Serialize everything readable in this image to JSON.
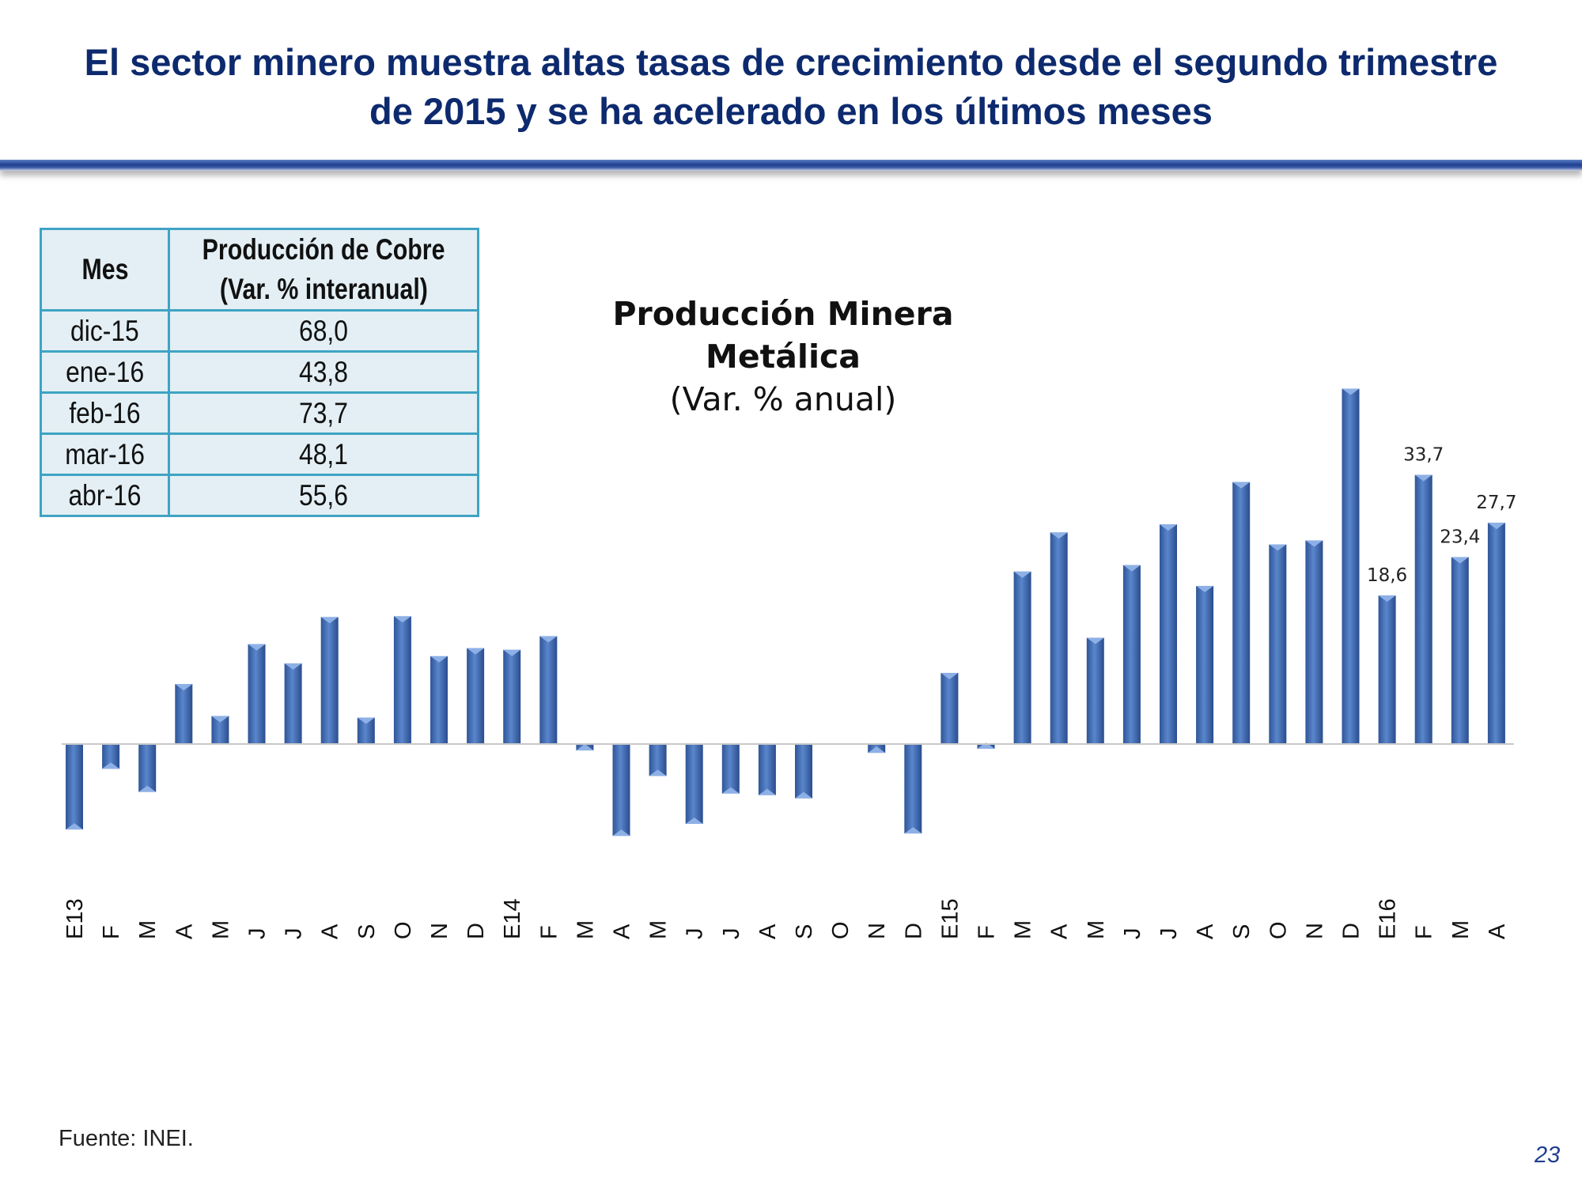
{
  "slide": {
    "title_line1": "El sector minero muestra altas tasas de crecimiento desde el segundo trimestre",
    "title_line2": "de 2015 y se ha acelerado en los últimos meses",
    "source": "Fuente: INEI.",
    "page_number": "23"
  },
  "table": {
    "header_month": "Mes",
    "header_value_line1": "Producción de Cobre",
    "header_value_line2": "(Var. % interanual)",
    "rows": [
      {
        "month": "dic-15",
        "value": "68,0"
      },
      {
        "month": "ene-16",
        "value": "43,8"
      },
      {
        "month": "feb-16",
        "value": "73,7"
      },
      {
        "month": "mar-16",
        "value": "48,1"
      },
      {
        "month": "abr-16",
        "value": "55,6"
      }
    ]
  },
  "chart_data": {
    "type": "bar",
    "title": "Producción Minera Metálica",
    "subtitle": "(Var. % anual)",
    "bar_color": "#4f7cc2",
    "categories": [
      "E13",
      "F",
      "M",
      "A",
      "M",
      "J",
      "J",
      "A",
      "S",
      "O",
      "N",
      "D",
      "E14",
      "F",
      "M",
      "A",
      "M",
      "J",
      "J",
      "A",
      "S",
      "O",
      "N",
      "D",
      "E15",
      "F",
      "M",
      "A",
      "M",
      "J",
      "J",
      "A",
      "S",
      "O",
      "N",
      "D",
      "E16",
      "F",
      "M",
      "A"
    ],
    "values": [
      -10.7,
      -3.1,
      -6.0,
      7.5,
      3.5,
      12.5,
      10.1,
      15.9,
      3.3,
      16.0,
      11.0,
      12.0,
      11.8,
      13.5,
      -0.8,
      -11.5,
      -4.0,
      -10.0,
      -6.2,
      -6.4,
      -6.8,
      0.0,
      -1.1,
      -11.2,
      8.9,
      -0.6,
      21.6,
      26.5,
      13.3,
      22.4,
      27.5,
      19.8,
      32.8,
      25.0,
      25.5,
      44.5,
      18.6,
      33.7,
      23.4,
      27.7
    ],
    "data_labels": [
      {
        "index": 36,
        "text": "18,6"
      },
      {
        "index": 37,
        "text": "33,7"
      },
      {
        "index": 38,
        "text": "23,4"
      },
      {
        "index": 39,
        "text": "27,7"
      }
    ],
    "grid": false,
    "legend": "none"
  }
}
